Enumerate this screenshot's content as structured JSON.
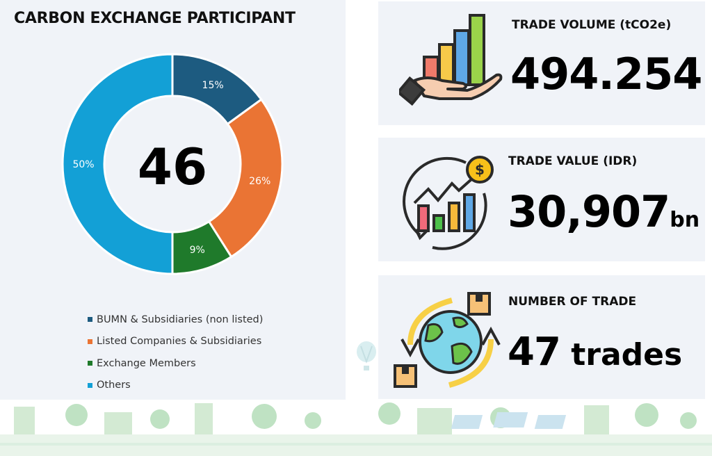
{
  "left": {
    "title": "CARBON EXCHANGE PARTICIPANT",
    "center_value": "46"
  },
  "chart_data": {
    "type": "pie",
    "title": "CARBON EXCHANGE PARTICIPANT",
    "donut": true,
    "center_label": "46",
    "categories": [
      "BUMN & Subsidiaries (non listed)",
      "Listed Companies & Subsidiaries",
      "Exchange Members",
      "Others"
    ],
    "values": [
      15,
      26,
      9,
      50
    ],
    "value_labels": [
      "15%",
      "26%",
      "9%",
      "50%"
    ],
    "colors": [
      "#1d5b80",
      "#ea7434",
      "#1f7a2b",
      "#13a0d6"
    ],
    "legend_placement": "bottom"
  },
  "stats": [
    {
      "id": "volume",
      "label": "TRADE VOLUME (tCO2e)",
      "value": "494.254",
      "unit": "",
      "icon": "hand-bar-chart-icon"
    },
    {
      "id": "value",
      "label": "TRADE VALUE (IDR)",
      "value": "30,907",
      "unit": "bn",
      "icon": "growth-chart-coin-icon"
    },
    {
      "id": "count",
      "label": "NUMBER OF TRADE",
      "value": "47",
      "unit": " trades",
      "icon": "globe-exchange-icon"
    }
  ],
  "decor": {
    "balloon_icon": "hot-air-balloon-icon",
    "ground_icon": "green-city-skyline"
  }
}
